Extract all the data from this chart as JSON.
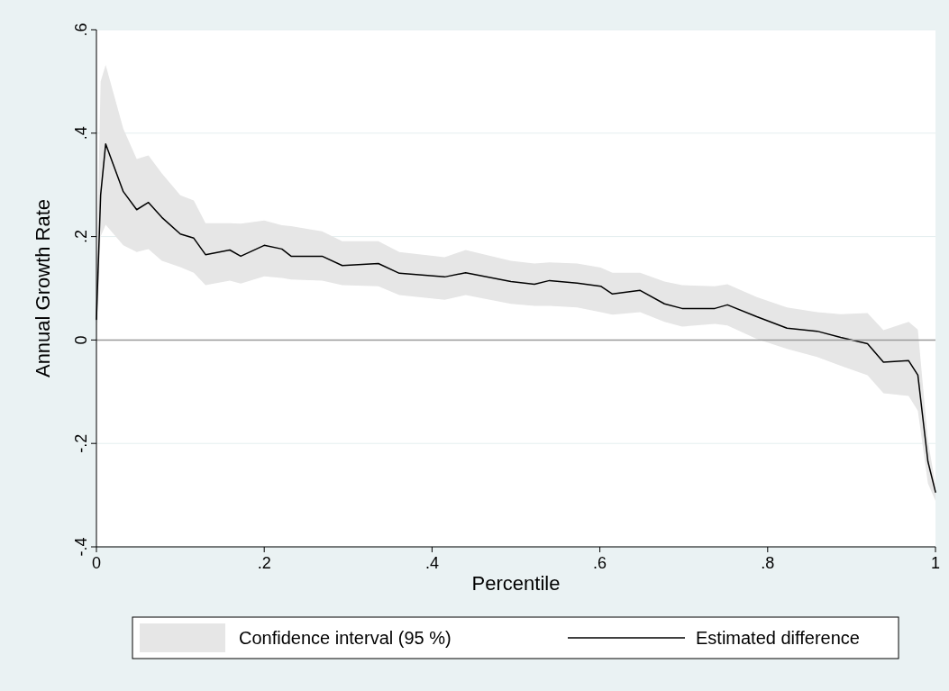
{
  "chart_data": {
    "type": "line",
    "xlabel": "Percentile",
    "ylabel": "Annual Growth Rate",
    "xlim": [
      0,
      1
    ],
    "ylim": [
      -0.4,
      0.6
    ],
    "xticks": [
      0,
      {
        "value": 0.2,
        "label": ".2"
      },
      {
        "value": 0.4,
        "label": ".4"
      },
      {
        "value": 0.6,
        "label": ".6"
      },
      {
        "value": 0.8,
        "label": ".8"
      },
      1
    ],
    "yticks": [
      {
        "value": -0.4,
        "label": "-.4"
      },
      {
        "value": -0.2,
        "label": "-.2"
      },
      0,
      {
        "value": 0.2,
        "label": ".2"
      },
      {
        "value": 0.4,
        "label": ".4"
      },
      {
        "value": 0.6,
        "label": ".6"
      }
    ],
    "grid": "y",
    "legend": "bottom",
    "annotations": [
      "Confidence interval (95 %)"
    ],
    "ref_lines": [
      {
        "axis": "y",
        "value": 0,
        "color": "#9a9a9a"
      }
    ],
    "series": [
      {
        "name": "Estimated difference",
        "type": "line",
        "color": "#000000",
        "line_style": "solid",
        "x": [
          0,
          0.005,
          0.011,
          0.032,
          0.048,
          0.062,
          0.078,
          0.1,
          0.116,
          0.13,
          0.159,
          0.172,
          0.2,
          0.221,
          0.232,
          0.269,
          0.293,
          0.336,
          0.361,
          0.415,
          0.44,
          0.494,
          0.522,
          0.54,
          0.573,
          0.601,
          0.615,
          0.648,
          0.677,
          0.698,
          0.737,
          0.752,
          0.787,
          0.823,
          0.859,
          0.887,
          0.919,
          0.938,
          0.968,
          0.979,
          0.991,
          1
        ],
        "values": [
          0.04,
          0.28,
          0.379,
          0.287,
          0.252,
          0.266,
          0.237,
          0.205,
          0.197,
          0.165,
          0.174,
          0.162,
          0.183,
          0.176,
          0.162,
          0.162,
          0.144,
          0.148,
          0.129,
          0.122,
          0.13,
          0.113,
          0.108,
          0.115,
          0.11,
          0.104,
          0.089,
          0.096,
          0.07,
          0.061,
          0.061,
          0.068,
          0.045,
          0.023,
          0.017,
          0.005,
          -0.007,
          -0.043,
          -0.04,
          -0.068,
          -0.235,
          -0.294
        ],
        "upper": [
          0.1,
          0.5,
          0.532,
          0.409,
          0.35,
          0.357,
          0.322,
          0.28,
          0.27,
          0.226,
          0.226,
          0.225,
          0.231,
          0.222,
          0.22,
          0.21,
          0.191,
          0.191,
          0.17,
          0.16,
          0.174,
          0.153,
          0.148,
          0.15,
          0.148,
          0.14,
          0.13,
          0.13,
          0.113,
          0.106,
          0.104,
          0.108,
          0.083,
          0.063,
          0.054,
          0.05,
          0.052,
          0.019,
          0.035,
          0.02,
          -0.195,
          -0.28
        ],
        "lower": [
          -0.02,
          0.2,
          0.223,
          0.183,
          0.17,
          0.176,
          0.153,
          0.141,
          0.13,
          0.106,
          0.115,
          0.109,
          0.123,
          0.12,
          0.117,
          0.115,
          0.106,
          0.104,
          0.087,
          0.078,
          0.087,
          0.07,
          0.066,
          0.066,
          0.063,
          0.054,
          0.049,
          0.054,
          0.035,
          0.026,
          0.031,
          0.028,
          0.002,
          -0.017,
          -0.033,
          -0.05,
          -0.068,
          -0.103,
          -0.108,
          -0.137,
          -0.277,
          -0.311
        ]
      }
    ]
  }
}
